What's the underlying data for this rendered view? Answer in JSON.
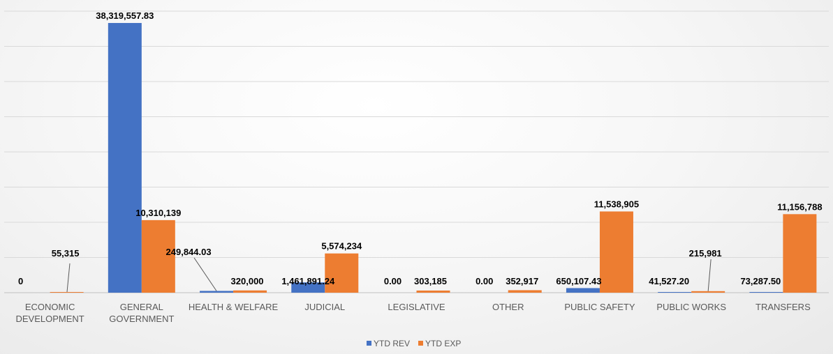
{
  "chart_data": {
    "type": "bar",
    "title": "",
    "xlabel": "",
    "ylabel": "",
    "grid": true,
    "legend_position": "bottom",
    "ylim": [
      0,
      40000000
    ],
    "categories": [
      [
        "ECONOMIC",
        "DEVELOPMENT"
      ],
      [
        "GENERAL",
        "GOVERNMENT"
      ],
      [
        "HEALTH & WELFARE"
      ],
      [
        "JUDICIAL"
      ],
      [
        "LEGISLATIVE"
      ],
      [
        "OTHER"
      ],
      [
        "PUBLIC SAFETY"
      ],
      [
        "PUBLIC WORKS"
      ],
      [
        "TRANSFERS"
      ]
    ],
    "series": [
      {
        "name": "YTD REV",
        "color": "#4472C4",
        "values": [
          0,
          38319557.83,
          249844.03,
          1461891.24,
          0,
          0,
          650107.43,
          41527.2,
          73287.5
        ],
        "labels": [
          "0",
          "38,319,557.83",
          "249,844.03",
          "1,461,891.24",
          "0.00",
          "0.00",
          "650,107.43",
          "41,527.20",
          "73,287.50"
        ]
      },
      {
        "name": "YTD EXP",
        "color": "#ED7D31",
        "values": [
          55315,
          10310139,
          320000,
          5574234,
          303185,
          352917,
          11538905,
          215981,
          11156788
        ],
        "labels": [
          "55,315",
          "10,310,139",
          "320,000",
          "5,574,234",
          "303,185",
          "352,917",
          "11,538,905",
          "215,981",
          "11,156,788"
        ]
      }
    ]
  }
}
